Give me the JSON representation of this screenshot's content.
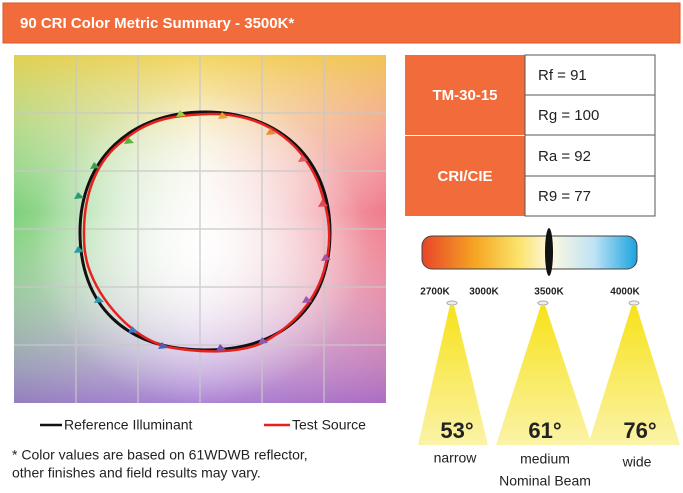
{
  "header": {
    "title": "90 CRI Color Metric Summary - 3500K*"
  },
  "legend": [
    {
      "label": "Reference Illuminant"
    },
    {
      "label": "Test Source"
    }
  ],
  "footnote": [
    "* Color values are based on 61WDWB reflector,",
    "other finishes and field results may vary."
  ],
  "metrics": [
    {
      "label": "TM-30-15",
      "values": [
        "Rf = 91",
        "Rg = 100"
      ]
    },
    {
      "label": "CRI/CIE",
      "values": [
        "Ra = 92",
        "R9 = 77"
      ]
    }
  ],
  "color_scale": {
    "ticks": [
      "2700K",
      "3000K",
      "3500K",
      "4000K"
    ]
  },
  "beams": [
    {
      "angle": "53°",
      "label": "narrow"
    },
    {
      "angle": "61°",
      "label": "medium"
    },
    {
      "angle": "76°",
      "label": "wide"
    }
  ],
  "beam_caption": "Nominal Beam"
}
